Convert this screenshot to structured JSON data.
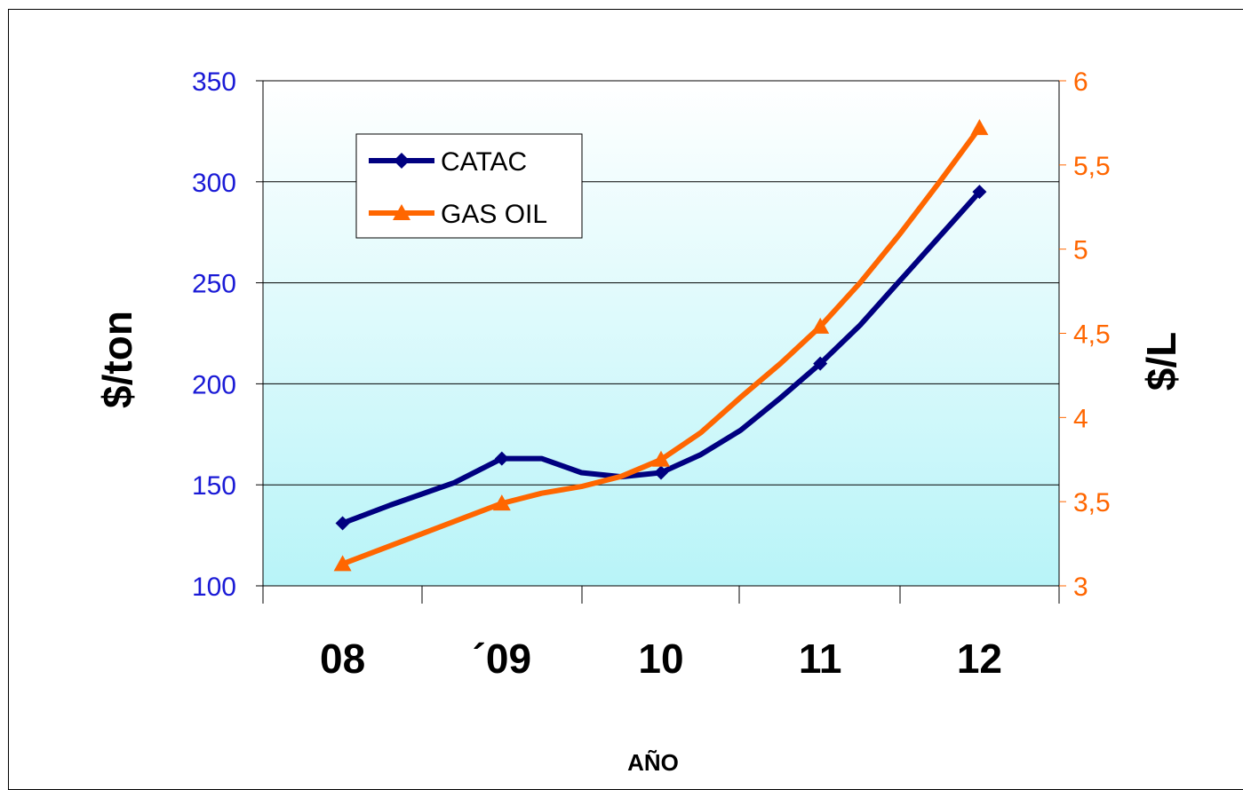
{
  "chart_data": {
    "type": "line",
    "categories": [
      "08",
      "´09",
      "10",
      "11",
      "12"
    ],
    "xlabel": "AÑO",
    "ylabel_left": "$/ton",
    "ylabel_right": "$/L",
    "ylim_left": [
      100,
      350
    ],
    "yticks_left": [
      "100",
      "150",
      "200",
      "250",
      "300",
      "350"
    ],
    "ylim_right": [
      3,
      6
    ],
    "yticks_right": [
      "3",
      "3,5",
      "4",
      "4,5",
      "5",
      "5,5",
      "6"
    ],
    "grid": true,
    "legend_position": "top-left",
    "series": [
      {
        "name": "CATAC",
        "axis": "left",
        "color": "#000080",
        "marker": "diamond",
        "values": [
          131,
          163,
          156,
          210,
          295
        ],
        "curve_x": [
          0,
          0.3,
          0.7,
          1,
          1.25,
          1.5,
          1.75,
          2,
          2.25,
          2.5,
          2.75,
          3,
          3.25,
          3.5,
          3.75,
          4
        ],
        "curve_y": [
          131,
          140,
          151,
          163,
          163,
          156,
          154,
          156,
          165,
          177,
          193,
          210,
          229,
          251,
          273,
          295
        ]
      },
      {
        "name": "GAS OIL",
        "axis": "right",
        "color": "#FF6600",
        "marker": "triangle",
        "values": [
          3.13,
          3.49,
          3.75,
          4.54,
          5.72
        ],
        "curve_x": [
          0,
          0.5,
          1,
          1.25,
          1.5,
          1.75,
          2,
          2.25,
          2.5,
          2.75,
          3,
          3.25,
          3.5,
          3.75,
          4
        ],
        "curve_y": [
          3.13,
          3.31,
          3.49,
          3.55,
          3.59,
          3.65,
          3.75,
          3.91,
          4.12,
          4.32,
          4.54,
          4.8,
          5.09,
          5.4,
          5.72
        ]
      }
    ]
  }
}
